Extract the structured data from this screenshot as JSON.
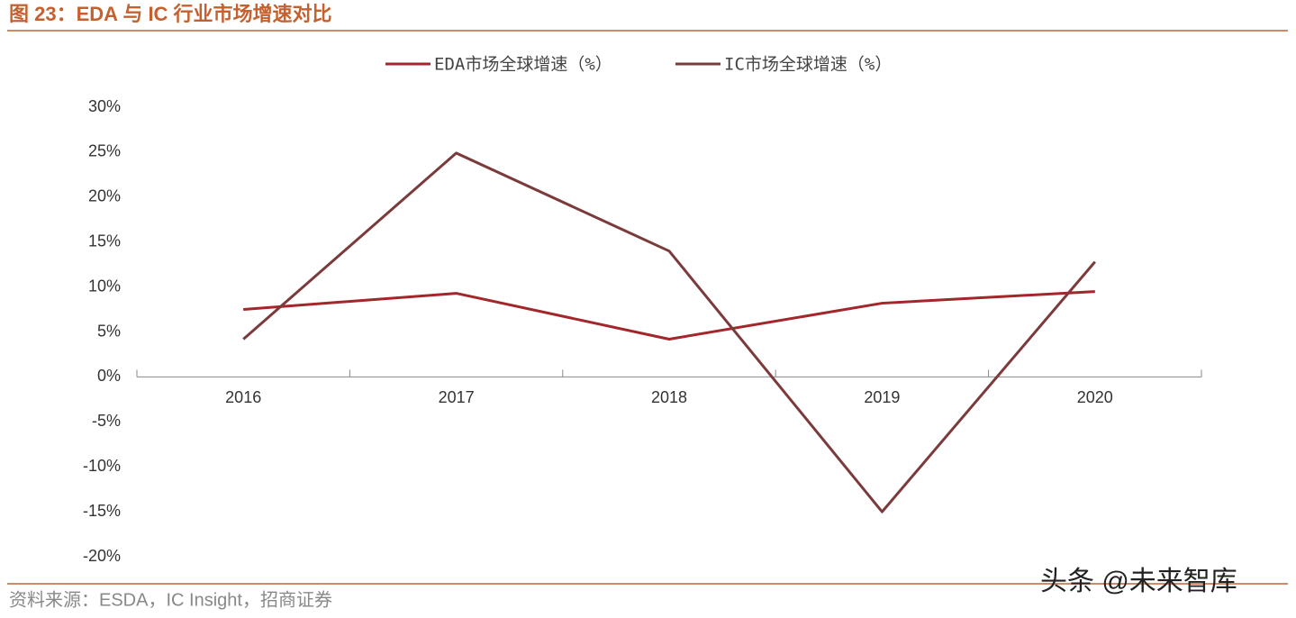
{
  "chart_data": {
    "type": "line",
    "title": "图 23：EDA 与 IC 行业市场增速对比",
    "source": "资料来源：ESDA，IC Insight，招商证券",
    "watermark": "头条 @未来智库",
    "categories": [
      "2016",
      "2017",
      "2018",
      "2019",
      "2020"
    ],
    "series": [
      {
        "name": "EDA市场全球增速（%）",
        "color": "#a3262a",
        "values": [
          7.5,
          9.3,
          4.2,
          8.2,
          9.5
        ]
      },
      {
        "name": "IC市场全球增速（%）",
        "color": "#7b3b3b",
        "values": [
          4.2,
          24.9,
          14.0,
          -15.0,
          12.8
        ]
      }
    ],
    "ylim": [
      -20,
      30
    ],
    "yticks": [
      {
        "value": -20,
        "label": "-20%"
      },
      {
        "value": -15,
        "label": "-15%"
      },
      {
        "value": -10,
        "label": "-10%"
      },
      {
        "value": -5,
        "label": "-5%"
      },
      {
        "value": 0,
        "label": "0%"
      },
      {
        "value": 5,
        "label": "5%"
      },
      {
        "value": 10,
        "label": "10%"
      },
      {
        "value": 15,
        "label": "15%"
      },
      {
        "value": 20,
        "label": "20%"
      },
      {
        "value": 25,
        "label": "25%"
      },
      {
        "value": 30,
        "label": "30%"
      }
    ],
    "grid": false
  }
}
